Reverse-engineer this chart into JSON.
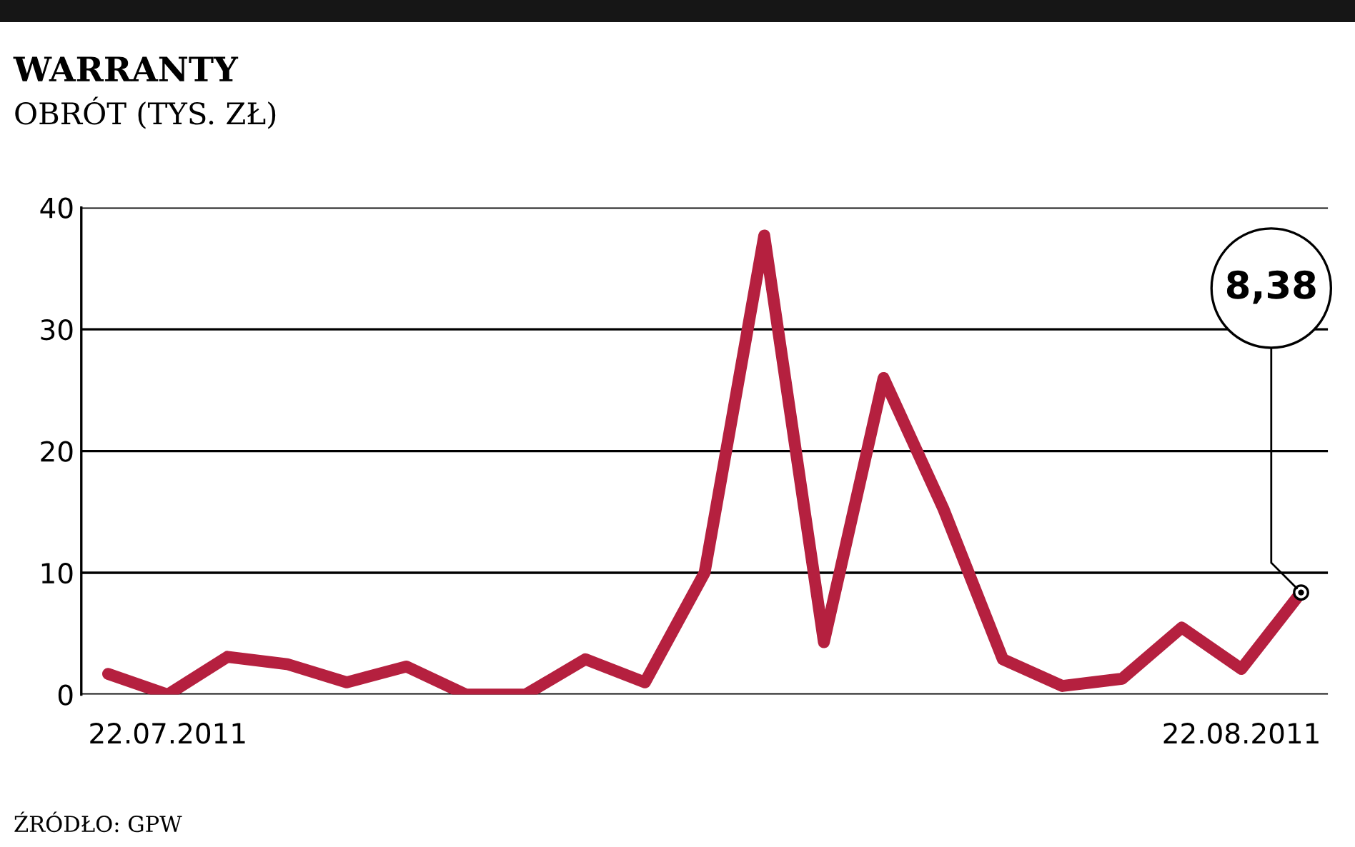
{
  "chart_data": {
    "type": "line",
    "title": "WARRANTY",
    "subtitle": "OBRÓT (TYS. ZŁ)",
    "annotations": [
      "ŹRÓDŁO: GPW"
    ],
    "categories": [
      null,
      "22.07.2011",
      null,
      null,
      null,
      null,
      null,
      null,
      null,
      null,
      null,
      null,
      null,
      null,
      null,
      null,
      null,
      null,
      null,
      "22.08.2011",
      null
    ],
    "series": [
      {
        "color": "#b5203f",
        "values": [
          1.7,
          0,
          3.1,
          2.5,
          1.0,
          2.3,
          0,
          0,
          2.9,
          1.0,
          10,
          37.7,
          4.3,
          26,
          15.3,
          2.9,
          0.7,
          1.3,
          5.5,
          2.1,
          8.38
        ],
        "value_labels": [
          null,
          null,
          null,
          null,
          null,
          null,
          null,
          null,
          null,
          null,
          null,
          null,
          null,
          null,
          null,
          null,
          null,
          null,
          null,
          null,
          "8,38"
        ]
      }
    ],
    "ylim": [
      0,
      40
    ],
    "yticks": [
      0,
      10,
      20,
      30,
      40
    ],
    "grid": "y",
    "legend": false,
    "marker": "none",
    "line_style": "solid"
  }
}
